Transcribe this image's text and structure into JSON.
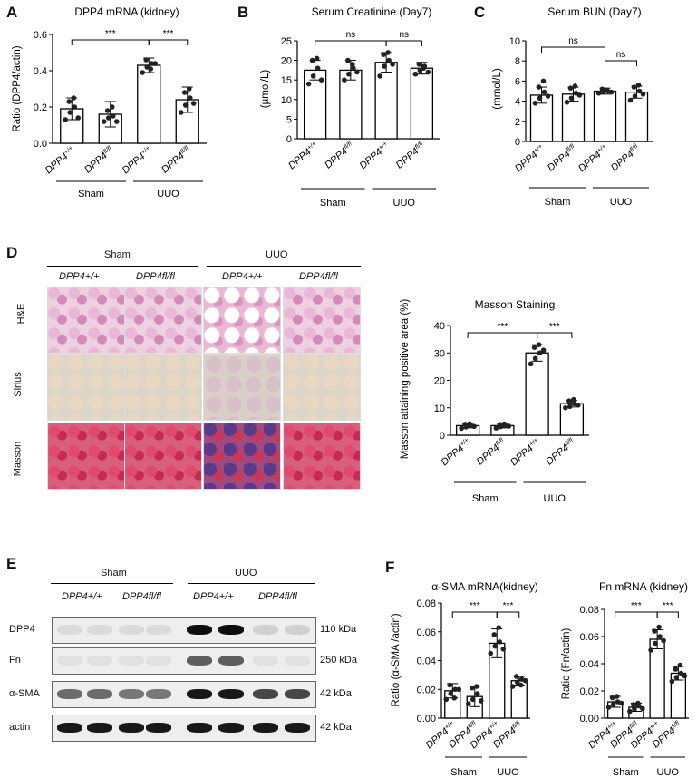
{
  "panels": {
    "A": "A",
    "B": "B",
    "C": "C",
    "D": "D",
    "E": "E",
    "F": "F"
  },
  "genotypes": [
    "DPP4+/+",
    "DPP4fl/fl",
    "DPP4+/+",
    "DPP4fl/fl"
  ],
  "groups": [
    "Sham",
    "UUO"
  ],
  "sig": {
    "ns": "ns",
    "stars": "***"
  },
  "histology": {
    "row_labels": [
      "H&E",
      "Sirius",
      "Masson"
    ],
    "col_header_groups": [
      "Sham",
      "UUO"
    ],
    "col_labels": [
      "DPP4+/+",
      "DPP4fl/fl",
      "DPP4+/+",
      "DPP4fl/fl"
    ]
  },
  "western": {
    "group_labels": [
      "Sham",
      "UUO"
    ],
    "lane_labels": [
      "DPP4+/+",
      "DPP4fl/fl",
      "DPP4+/+",
      "DPP4fl/fl"
    ],
    "rows": [
      {
        "protein": "DPP4",
        "size": "110 kDa"
      },
      {
        "protein": "Fn",
        "size": "250 kDa"
      },
      {
        "protein": "α-SMA",
        "size": "42 kDa"
      },
      {
        "protein": "actin",
        "size": "42 kDa"
      }
    ]
  },
  "chart_data": [
    {
      "id": "A",
      "type": "bar",
      "title": "DPP4 mRNA (kidney)",
      "ylabel": "Ratio (DPP4/actin)",
      "ylim": [
        0,
        0.6
      ],
      "yticks": [
        "0.0",
        "0.2",
        "0.4",
        "0.6"
      ],
      "categories": [
        "DPP4+/+",
        "DPP4fl/fl",
        "DPP4+/+",
        "DPP4fl/fl"
      ],
      "values": [
        0.19,
        0.16,
        0.43,
        0.24
      ],
      "errors": [
        0.06,
        0.07,
        0.04,
        0.07
      ],
      "points": [
        [
          0.13,
          0.17,
          0.2,
          0.23,
          0.25,
          0.14
        ],
        [
          0.12,
          0.14,
          0.15,
          0.18,
          0.2,
          0.12
        ],
        [
          0.39,
          0.42,
          0.44,
          0.46,
          0.41,
          0.44
        ],
        [
          0.17,
          0.21,
          0.25,
          0.28,
          0.3,
          0.22
        ]
      ],
      "groups": [
        "Sham",
        "UUO"
      ],
      "sig": [
        "***",
        "***"
      ]
    },
    {
      "id": "B",
      "type": "bar",
      "title": "Serum Creatinine (Day7)",
      "ylabel": "(µmol/L)",
      "ylim": [
        0,
        25
      ],
      "yticks": [
        "0",
        "5",
        "10",
        "15",
        "20",
        "25"
      ],
      "categories": [
        "DPP4+/+",
        "DPP4fl/fl",
        "DPP4+/+",
        "DPP4fl/fl"
      ],
      "values": [
        17.5,
        17.5,
        19.5,
        18
      ],
      "errors": [
        2.5,
        2.5,
        2.5,
        1.5
      ],
      "points": [
        [
          14,
          16,
          18,
          20,
          20.5,
          15
        ],
        [
          15,
          16.5,
          18,
          20,
          19,
          17
        ],
        [
          16,
          18.5,
          20,
          21.5,
          22,
          19
        ],
        [
          16.5,
          17.5,
          18.5,
          19,
          18,
          17
        ]
      ],
      "groups": [
        "Sham",
        "UUO"
      ],
      "sig": [
        "ns",
        "ns"
      ]
    },
    {
      "id": "C",
      "type": "bar",
      "title": "Serum BUN (Day7)",
      "ylabel": "(mmol/L)",
      "ylim": [
        0,
        10
      ],
      "yticks": [
        "0",
        "2",
        "4",
        "6",
        "8",
        "10"
      ],
      "categories": [
        "DPP4+/+",
        "DPP4fl/fl",
        "DPP4+/+",
        "DPP4fl/fl"
      ],
      "values": [
        4.6,
        4.7,
        5.0,
        4.9
      ],
      "errors": [
        0.8,
        0.7,
        0.3,
        0.6
      ],
      "points": [
        [
          3.8,
          4.3,
          4.9,
          5.4,
          6.0,
          4.5
        ],
        [
          3.9,
          4.3,
          4.8,
          5.3,
          5.5,
          4.6
        ],
        [
          4.8,
          4.9,
          5.0,
          5.2,
          5.1,
          4.9
        ],
        [
          4.1,
          4.5,
          5.0,
          5.4,
          5.6,
          4.7
        ]
      ],
      "groups": [
        "Sham",
        "UUO"
      ],
      "sig": [
        "ns",
        "ns"
      ]
    },
    {
      "id": "D",
      "type": "bar",
      "title": "Masson Staining",
      "ylabel": "Masson attaining positive area (%)",
      "ylim": [
        0,
        40
      ],
      "yticks": [
        "0",
        "10",
        "20",
        "30",
        "40"
      ],
      "categories": [
        "DPP4+/+",
        "DPP4fl/fl",
        "DPP4+/+",
        "DPP4fl/fl"
      ],
      "values": [
        3.5,
        3.5,
        30,
        11.5
      ],
      "errors": [
        0.8,
        0.8,
        3,
        1.2
      ],
      "points": [
        [
          2.5,
          3,
          3.5,
          4,
          4.2,
          3.2
        ],
        [
          2.6,
          3.1,
          3.4,
          3.9,
          4.1,
          3.3
        ],
        [
          26,
          28,
          30,
          32,
          33,
          31
        ],
        [
          10,
          10.5,
          11.5,
          12.5,
          13,
          11
        ]
      ],
      "groups": [
        "Sham",
        "UUO"
      ],
      "sig": [
        "***",
        "***"
      ]
    },
    {
      "id": "F1",
      "type": "bar",
      "title": "α-SMA mRNA(kidney)",
      "ylabel": "Ratio (α-SMA /actin)",
      "ylim": [
        0,
        0.08
      ],
      "yticks": [
        "0.00",
        "0.02",
        "0.04",
        "0.06",
        "0.08"
      ],
      "categories": [
        "DPP4+/+",
        "DPP4fl/fl",
        "DPP4+/+",
        "DPP4fl/fl"
      ],
      "values": [
        0.019,
        0.015,
        0.052,
        0.026
      ],
      "errors": [
        0.005,
        0.007,
        0.01,
        0.003
      ],
      "points": [
        [
          0.013,
          0.017,
          0.02,
          0.023,
          0.014,
          0.02
        ],
        [
          0.01,
          0.013,
          0.017,
          0.021,
          0.022,
          0.012
        ],
        [
          0.045,
          0.05,
          0.053,
          0.058,
          0.063,
          0.048
        ],
        [
          0.022,
          0.025,
          0.027,
          0.029,
          0.023,
          0.026
        ]
      ],
      "groups": [
        "Sham",
        "UUO"
      ],
      "sig": [
        "***",
        "***"
      ]
    },
    {
      "id": "F2",
      "type": "bar",
      "title": "Fn mRNA (kidney)",
      "ylabel": "Ratio (Fn/actin)",
      "ylim": [
        0,
        0.08
      ],
      "yticks": [
        "0.00",
        "0.02",
        "0.04",
        "0.06",
        "0.08"
      ],
      "categories": [
        "DPP4+/+",
        "DPP4fl/fl",
        "DPP4+/+",
        "DPP4fl/fl"
      ],
      "values": [
        0.012,
        0.008,
        0.058,
        0.033
      ],
      "errors": [
        0.004,
        0.003,
        0.007,
        0.005
      ],
      "points": [
        [
          0.008,
          0.01,
          0.012,
          0.015,
          0.016,
          0.011
        ],
        [
          0.005,
          0.007,
          0.009,
          0.01,
          0.011,
          0.007
        ],
        [
          0.05,
          0.055,
          0.06,
          0.064,
          0.067,
          0.057
        ],
        [
          0.027,
          0.03,
          0.033,
          0.036,
          0.039,
          0.031
        ]
      ],
      "groups": [
        "Sham",
        "UUO"
      ],
      "sig": [
        "***",
        "***"
      ]
    }
  ]
}
